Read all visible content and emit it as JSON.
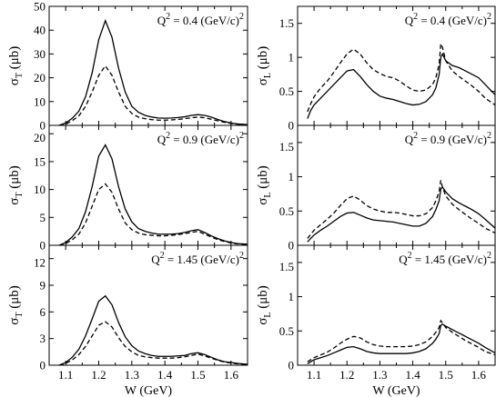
{
  "colors": {
    "line": "#000000",
    "background": "#ffffff"
  },
  "chart_data": [
    {
      "type": "line",
      "column": "left",
      "row": 0,
      "ylabel": "σ_T (μb)",
      "yAxis": {
        "prefix": "σ",
        "sub": "T",
        "suffix": " (μb)"
      },
      "annotation": {
        "text": "Q",
        "sup": "2",
        "rest": " = 0.4 (GeV/c)",
        "sup2": "2"
      },
      "xlim": [
        1.05,
        1.65
      ],
      "ylim": [
        0,
        50
      ],
      "yticks": [
        0,
        10,
        20,
        30,
        40,
        50
      ],
      "ytickLabels": [
        "0",
        "10",
        "20",
        "30",
        "40",
        "50"
      ],
      "xticks": [
        1.1,
        1.2,
        1.3,
        1.4,
        1.5,
        1.6
      ],
      "xtickLabels": [],
      "xlabel": "",
      "series": [
        {
          "style": "solid",
          "x": [
            1.08,
            1.1,
            1.12,
            1.14,
            1.16,
            1.18,
            1.2,
            1.22,
            1.24,
            1.26,
            1.28,
            1.3,
            1.32,
            1.34,
            1.36,
            1.38,
            1.4,
            1.42,
            1.44,
            1.46,
            1.48,
            1.5,
            1.52,
            1.54,
            1.56,
            1.58,
            1.6,
            1.62,
            1.65
          ],
          "y": [
            0,
            1,
            3,
            6,
            12,
            22,
            36,
            44,
            37,
            24,
            14,
            8,
            5.5,
            4.2,
            3.5,
            3.1,
            3,
            3.1,
            3.3,
            3.6,
            4.2,
            4.5,
            4.2,
            3.5,
            2.5,
            1.6,
            1,
            0.6,
            0.3
          ]
        },
        {
          "style": "dashed",
          "x": [
            1.08,
            1.1,
            1.12,
            1.14,
            1.16,
            1.18,
            1.2,
            1.22,
            1.24,
            1.26,
            1.28,
            1.3,
            1.32,
            1.34,
            1.36,
            1.38,
            1.4,
            1.42,
            1.44,
            1.46,
            1.48,
            1.5,
            1.52,
            1.54,
            1.56,
            1.58,
            1.6,
            1.62,
            1.65
          ],
          "y": [
            0,
            0.5,
            2,
            4,
            8,
            14,
            21,
            25,
            21,
            14,
            8,
            5,
            3.5,
            2.8,
            2.4,
            2.2,
            2.2,
            2.3,
            2.5,
            2.8,
            3.2,
            3.5,
            3.2,
            2.6,
            1.9,
            1.3,
            0.8,
            0.5,
            0.2
          ]
        }
      ]
    },
    {
      "type": "line",
      "column": "left",
      "row": 1,
      "ylabel": "σ_T (μb)",
      "yAxis": {
        "prefix": "σ",
        "sub": "T",
        "suffix": " (μb)"
      },
      "annotation": {
        "text": "Q",
        "sup": "2",
        "rest": " = 0.9 (GeV/c)",
        "sup2": "2"
      },
      "xlim": [
        1.05,
        1.65
      ],
      "ylim": [
        0,
        21.5
      ],
      "yticks": [
        0,
        5,
        10,
        15,
        20
      ],
      "ytickLabels": [
        "0",
        "5",
        "10",
        "15",
        "20"
      ],
      "xticks": [
        1.1,
        1.2,
        1.3,
        1.4,
        1.5,
        1.6
      ],
      "xtickLabels": [],
      "xlabel": "",
      "series": [
        {
          "style": "solid",
          "x": [
            1.08,
            1.1,
            1.12,
            1.14,
            1.16,
            1.18,
            1.2,
            1.22,
            1.24,
            1.26,
            1.28,
            1.3,
            1.32,
            1.34,
            1.36,
            1.38,
            1.4,
            1.42,
            1.44,
            1.46,
            1.48,
            1.5,
            1.52,
            1.54,
            1.56,
            1.58,
            1.6,
            1.62,
            1.65
          ],
          "y": [
            0,
            0.5,
            1.5,
            3,
            6,
            10.5,
            16,
            18,
            15.5,
            10.5,
            6.5,
            4.2,
            3,
            2.5,
            2.2,
            2,
            2,
            2,
            2.1,
            2.3,
            2.6,
            2.8,
            2.3,
            1.7,
            1.2,
            0.8,
            0.5,
            0.3,
            0.2
          ]
        },
        {
          "style": "dashed",
          "x": [
            1.08,
            1.1,
            1.12,
            1.14,
            1.16,
            1.18,
            1.2,
            1.22,
            1.24,
            1.26,
            1.28,
            1.3,
            1.32,
            1.34,
            1.36,
            1.38,
            1.4,
            1.42,
            1.44,
            1.46,
            1.48,
            1.5,
            1.52,
            1.54,
            1.56,
            1.58,
            1.6,
            1.62,
            1.65
          ],
          "y": [
            0,
            0.3,
            1,
            2,
            4,
            7,
            10,
            11,
            9.5,
            6.5,
            4,
            2.8,
            2.2,
            1.9,
            1.8,
            1.7,
            1.7,
            1.8,
            1.9,
            2.1,
            2.3,
            2.5,
            2,
            1.5,
            1,
            0.7,
            0.4,
            0.25,
            0.15
          ]
        }
      ]
    },
    {
      "type": "line",
      "column": "left",
      "row": 2,
      "ylabel": "σ_T (μb)",
      "yAxis": {
        "prefix": "σ",
        "sub": "T",
        "suffix": " (μb)"
      },
      "annotation": {
        "text": "Q",
        "sup": "2",
        "rest": " = 1.45 (GeV/c)",
        "sup2": "2"
      },
      "xlim": [
        1.05,
        1.65
      ],
      "ylim": [
        0,
        13.5
      ],
      "yticks": [
        0,
        3,
        6,
        9,
        12
      ],
      "ytickLabels": [
        "0",
        "3",
        "6",
        "9",
        "12"
      ],
      "xticks": [
        1.1,
        1.2,
        1.3,
        1.4,
        1.5,
        1.6
      ],
      "xtickLabels": [
        "1.1",
        "1.2",
        "1.3",
        "1.4",
        "1.5",
        "1.6"
      ],
      "xlabel": "W (GeV)",
      "series": [
        {
          "style": "solid",
          "x": [
            1.08,
            1.1,
            1.12,
            1.14,
            1.16,
            1.18,
            1.2,
            1.22,
            1.24,
            1.26,
            1.28,
            1.3,
            1.32,
            1.34,
            1.36,
            1.38,
            1.4,
            1.42,
            1.44,
            1.46,
            1.48,
            1.5,
            1.52,
            1.54,
            1.56,
            1.58,
            1.6,
            1.62,
            1.65
          ],
          "y": [
            0,
            0.3,
            0.9,
            1.8,
            3.3,
            5.2,
            7.2,
            7.8,
            6.8,
            4.8,
            3.2,
            2.2,
            1.6,
            1.3,
            1.1,
            1,
            1,
            1,
            1.05,
            1.1,
            1.3,
            1.4,
            1.2,
            0.9,
            0.6,
            0.4,
            0.3,
            0.2,
            0.1
          ]
        },
        {
          "style": "dashed",
          "x": [
            1.08,
            1.1,
            1.12,
            1.14,
            1.16,
            1.18,
            1.2,
            1.22,
            1.24,
            1.26,
            1.28,
            1.3,
            1.32,
            1.34,
            1.36,
            1.38,
            1.4,
            1.42,
            1.44,
            1.46,
            1.48,
            1.5,
            1.52,
            1.54,
            1.56,
            1.58,
            1.6,
            1.62,
            1.65
          ],
          "y": [
            0,
            0.2,
            0.6,
            1.2,
            2.1,
            3.3,
            4.5,
            4.9,
            4.3,
            3.1,
            2.1,
            1.5,
            1.1,
            0.95,
            0.85,
            0.8,
            0.8,
            0.8,
            0.85,
            0.95,
            1.1,
            1.25,
            1.05,
            0.8,
            0.55,
            0.35,
            0.25,
            0.15,
            0.1
          ]
        }
      ]
    },
    {
      "type": "line",
      "column": "right",
      "row": 0,
      "ylabel": "σ_L (μb)",
      "yAxis": {
        "prefix": "σ",
        "sub": "L",
        "suffix": " (μb)"
      },
      "annotation": {
        "text": "Q",
        "sup": "2",
        "rest": " = 0.4 (GeV/c)",
        "sup2": "2"
      },
      "xlim": [
        1.05,
        1.65
      ],
      "ylim": [
        0,
        1.75
      ],
      "yticks": [
        0,
        0.5,
        1,
        1.5
      ],
      "ytickLabels": [
        "0",
        "0.5",
        "1",
        "1.5"
      ],
      "xticks": [
        1.1,
        1.2,
        1.3,
        1.4,
        1.5,
        1.6
      ],
      "xtickLabels": [],
      "xlabel": "",
      "series": [
        {
          "style": "solid",
          "x": [
            1.08,
            1.09,
            1.1,
            1.12,
            1.14,
            1.16,
            1.18,
            1.2,
            1.22,
            1.24,
            1.26,
            1.28,
            1.3,
            1.32,
            1.34,
            1.36,
            1.38,
            1.4,
            1.42,
            1.44,
            1.46,
            1.47,
            1.48,
            1.485,
            1.49,
            1.5,
            1.52,
            1.54,
            1.56,
            1.58,
            1.6,
            1.62,
            1.65
          ],
          "y": [
            0.1,
            0.22,
            0.3,
            0.4,
            0.5,
            0.6,
            0.7,
            0.8,
            0.82,
            0.72,
            0.6,
            0.5,
            0.43,
            0.4,
            0.38,
            0.35,
            0.32,
            0.3,
            0.31,
            0.35,
            0.45,
            0.55,
            0.75,
            1.0,
            1.05,
            0.95,
            0.88,
            0.85,
            0.8,
            0.75,
            0.7,
            0.6,
            0.45
          ]
        },
        {
          "style": "dashed",
          "x": [
            1.08,
            1.09,
            1.1,
            1.12,
            1.14,
            1.16,
            1.18,
            1.2,
            1.22,
            1.24,
            1.26,
            1.28,
            1.3,
            1.32,
            1.34,
            1.36,
            1.38,
            1.4,
            1.42,
            1.44,
            1.46,
            1.47,
            1.48,
            1.485,
            1.49,
            1.5,
            1.52,
            1.54,
            1.56,
            1.58,
            1.6,
            1.62,
            1.65
          ],
          "y": [
            0.2,
            0.32,
            0.42,
            0.55,
            0.65,
            0.78,
            0.92,
            1.05,
            1.12,
            1.05,
            0.92,
            0.82,
            0.76,
            0.72,
            0.7,
            0.65,
            0.58,
            0.52,
            0.5,
            0.52,
            0.6,
            0.7,
            0.9,
            1.2,
            1.15,
            0.95,
            0.8,
            0.72,
            0.65,
            0.58,
            0.5,
            0.4,
            0.3
          ]
        }
      ]
    },
    {
      "type": "line",
      "column": "right",
      "row": 1,
      "ylabel": "σ_L (μb)",
      "yAxis": {
        "prefix": "σ",
        "sub": "L",
        "suffix": " (μb)"
      },
      "annotation": {
        "text": "Q",
        "sup": "2",
        "rest": " = 0.9 (GeV/c)",
        "sup2": "2"
      },
      "xlim": [
        1.05,
        1.65
      ],
      "ylim": [
        0,
        1.75
      ],
      "yticks": [
        0,
        0.5,
        1,
        1.5
      ],
      "ytickLabels": [
        "0",
        "0.5",
        "1",
        "1.5"
      ],
      "xticks": [
        1.1,
        1.2,
        1.3,
        1.4,
        1.5,
        1.6
      ],
      "xtickLabels": [],
      "xlabel": "",
      "series": [
        {
          "style": "solid",
          "x": [
            1.08,
            1.09,
            1.1,
            1.12,
            1.14,
            1.16,
            1.18,
            1.2,
            1.22,
            1.24,
            1.26,
            1.28,
            1.3,
            1.32,
            1.34,
            1.36,
            1.38,
            1.4,
            1.42,
            1.44,
            1.46,
            1.47,
            1.48,
            1.485,
            1.49,
            1.5,
            1.52,
            1.54,
            1.56,
            1.58,
            1.6,
            1.62,
            1.65
          ],
          "y": [
            0.05,
            0.1,
            0.15,
            0.22,
            0.28,
            0.35,
            0.42,
            0.47,
            0.48,
            0.44,
            0.4,
            0.37,
            0.36,
            0.35,
            0.34,
            0.32,
            0.3,
            0.28,
            0.28,
            0.32,
            0.42,
            0.52,
            0.65,
            0.82,
            0.85,
            0.78,
            0.68,
            0.62,
            0.57,
            0.52,
            0.46,
            0.38,
            0.25
          ]
        },
        {
          "style": "dashed",
          "x": [
            1.08,
            1.09,
            1.1,
            1.12,
            1.14,
            1.16,
            1.18,
            1.2,
            1.22,
            1.24,
            1.26,
            1.28,
            1.3,
            1.32,
            1.34,
            1.36,
            1.38,
            1.4,
            1.42,
            1.44,
            1.46,
            1.47,
            1.48,
            1.485,
            1.49,
            1.5,
            1.52,
            1.54,
            1.56,
            1.58,
            1.6,
            1.62,
            1.65
          ],
          "y": [
            0.1,
            0.16,
            0.22,
            0.3,
            0.38,
            0.47,
            0.58,
            0.68,
            0.72,
            0.66,
            0.58,
            0.53,
            0.5,
            0.48,
            0.48,
            0.47,
            0.45,
            0.43,
            0.43,
            0.46,
            0.55,
            0.65,
            0.78,
            0.95,
            0.85,
            0.72,
            0.6,
            0.52,
            0.45,
            0.38,
            0.32,
            0.25,
            0.18
          ]
        }
      ]
    },
    {
      "type": "line",
      "column": "right",
      "row": 2,
      "ylabel": "σ_L (μb)",
      "yAxis": {
        "prefix": "σ",
        "sub": "L",
        "suffix": " (μb)"
      },
      "annotation": {
        "text": "Q",
        "sup": "2",
        "rest": " = 1.45 (GeV/c)",
        "sup2": "2"
      },
      "xlim": [
        1.05,
        1.65
      ],
      "ylim": [
        0,
        1.75
      ],
      "yticks": [
        0,
        0.5,
        1,
        1.5
      ],
      "ytickLabels": [
        "0",
        "0.5",
        "1",
        "1.5"
      ],
      "xticks": [
        1.1,
        1.2,
        1.3,
        1.4,
        1.5,
        1.6
      ],
      "xtickLabels": [
        "1.1",
        "1.2",
        "1.3",
        "1.4",
        "1.5",
        "1.6"
      ],
      "xlabel": "W (GeV)",
      "series": [
        {
          "style": "solid",
          "x": [
            1.08,
            1.09,
            1.1,
            1.12,
            1.14,
            1.16,
            1.18,
            1.2,
            1.22,
            1.24,
            1.26,
            1.28,
            1.3,
            1.32,
            1.34,
            1.36,
            1.38,
            1.4,
            1.42,
            1.44,
            1.46,
            1.47,
            1.48,
            1.485,
            1.49,
            1.5,
            1.52,
            1.54,
            1.56,
            1.58,
            1.6,
            1.62,
            1.65
          ],
          "y": [
            0.02,
            0.05,
            0.08,
            0.11,
            0.14,
            0.18,
            0.22,
            0.26,
            0.27,
            0.24,
            0.2,
            0.18,
            0.17,
            0.17,
            0.17,
            0.17,
            0.17,
            0.18,
            0.2,
            0.24,
            0.32,
            0.38,
            0.46,
            0.58,
            0.6,
            0.57,
            0.52,
            0.47,
            0.42,
            0.37,
            0.32,
            0.26,
            0.18
          ]
        },
        {
          "style": "dashed",
          "x": [
            1.08,
            1.09,
            1.1,
            1.12,
            1.14,
            1.16,
            1.18,
            1.2,
            1.22,
            1.24,
            1.26,
            1.28,
            1.3,
            1.32,
            1.34,
            1.36,
            1.38,
            1.4,
            1.42,
            1.44,
            1.46,
            1.47,
            1.48,
            1.485,
            1.49,
            1.5,
            1.52,
            1.54,
            1.56,
            1.58,
            1.6,
            1.62,
            1.65
          ],
          "y": [
            0.05,
            0.08,
            0.11,
            0.15,
            0.19,
            0.25,
            0.32,
            0.38,
            0.42,
            0.4,
            0.34,
            0.3,
            0.28,
            0.27,
            0.27,
            0.27,
            0.27,
            0.28,
            0.3,
            0.34,
            0.42,
            0.48,
            0.55,
            0.65,
            0.62,
            0.55,
            0.48,
            0.42,
            0.36,
            0.31,
            0.26,
            0.2,
            0.15
          ]
        }
      ]
    }
  ]
}
